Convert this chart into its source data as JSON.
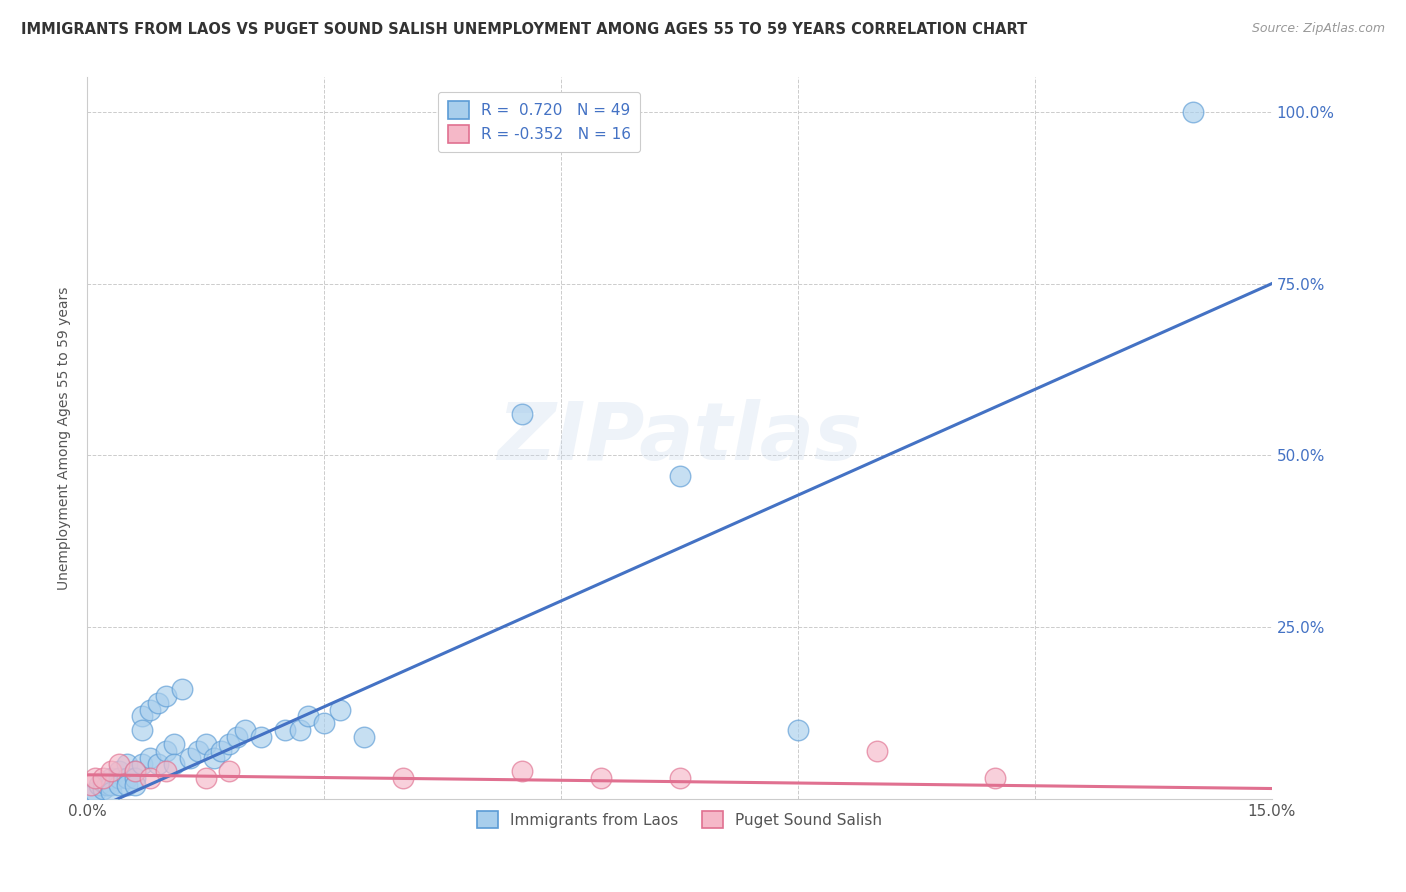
{
  "title": "IMMIGRANTS FROM LAOS VS PUGET SOUND SALISH UNEMPLOYMENT AMONG AGES 55 TO 59 YEARS CORRELATION CHART",
  "source": "Source: ZipAtlas.com",
  "ylabel": "Unemployment Among Ages 55 to 59 years",
  "right_ytick_labels": [
    "100.0%",
    "75.0%",
    "50.0%",
    "25.0%"
  ],
  "right_ytick_values": [
    1.0,
    0.75,
    0.5,
    0.25
  ],
  "blue_R": 0.72,
  "blue_N": 49,
  "pink_R": -0.352,
  "pink_N": 16,
  "blue_color": "#A8CEEC",
  "pink_color": "#F5B8C8",
  "blue_edge_color": "#5B9BD5",
  "pink_edge_color": "#E07090",
  "blue_line_color": "#4472C4",
  "pink_line_color": "#E07090",
  "legend_label_blue": "Immigrants from Laos",
  "legend_label_pink": "Puget Sound Salish",
  "watermark": "ZIPatlas",
  "blue_scatter_x": [
    0.0005,
    0.001,
    0.0015,
    0.002,
    0.002,
    0.0025,
    0.003,
    0.003,
    0.003,
    0.004,
    0.004,
    0.004,
    0.005,
    0.005,
    0.005,
    0.006,
    0.006,
    0.006,
    0.007,
    0.007,
    0.007,
    0.008,
    0.008,
    0.009,
    0.009,
    0.01,
    0.01,
    0.011,
    0.011,
    0.012,
    0.013,
    0.014,
    0.015,
    0.016,
    0.017,
    0.018,
    0.019,
    0.02,
    0.022,
    0.025,
    0.027,
    0.028,
    0.03,
    0.032,
    0.035,
    0.055,
    0.075,
    0.09,
    0.14
  ],
  "blue_scatter_y": [
    0.005,
    0.01,
    0.02,
    0.015,
    0.025,
    0.02,
    0.03,
    0.02,
    0.01,
    0.04,
    0.03,
    0.02,
    0.05,
    0.03,
    0.02,
    0.04,
    0.03,
    0.02,
    0.12,
    0.1,
    0.05,
    0.13,
    0.06,
    0.14,
    0.05,
    0.15,
    0.07,
    0.08,
    0.05,
    0.16,
    0.06,
    0.07,
    0.08,
    0.06,
    0.07,
    0.08,
    0.09,
    0.1,
    0.09,
    0.1,
    0.1,
    0.12,
    0.11,
    0.13,
    0.09,
    0.56,
    0.47,
    0.1,
    1.0
  ],
  "pink_scatter_x": [
    0.0005,
    0.001,
    0.002,
    0.003,
    0.004,
    0.006,
    0.008,
    0.01,
    0.015,
    0.018,
    0.04,
    0.055,
    0.065,
    0.075,
    0.1,
    0.115
  ],
  "pink_scatter_y": [
    0.02,
    0.03,
    0.03,
    0.04,
    0.05,
    0.04,
    0.03,
    0.04,
    0.03,
    0.04,
    0.03,
    0.04,
    0.03,
    0.03,
    0.07,
    0.03
  ],
  "xmin": 0.0,
  "xmax": 0.15,
  "ymin": 0.0,
  "ymax": 1.05,
  "blue_line_x0": 0.0,
  "blue_line_y0": -0.02,
  "blue_line_x1": 0.15,
  "blue_line_y1": 0.75,
  "pink_line_x0": 0.0,
  "pink_line_y0": 0.035,
  "pink_line_x1": 0.15,
  "pink_line_y1": 0.015
}
